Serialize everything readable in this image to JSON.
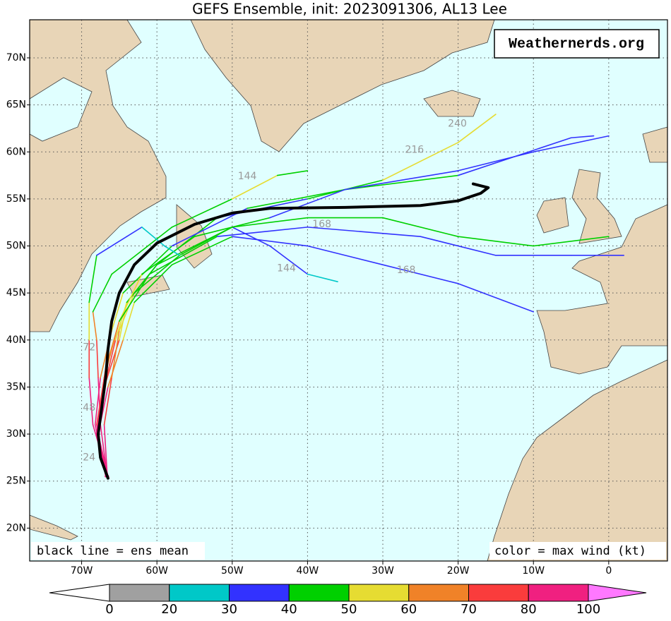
{
  "chart_data": {
    "type": "map",
    "title": "GEFS Ensemble, init: 2023091306, AL13 Lee",
    "xlim": [
      -76.9,
      7.8
    ],
    "ylim": [
      16.5,
      74.05
    ],
    "xticks": [
      {
        "value": -70,
        "label": "70W"
      },
      {
        "value": -60,
        "label": "60W"
      },
      {
        "value": -50,
        "label": "50W"
      },
      {
        "value": -40,
        "label": "40W"
      },
      {
        "value": -30,
        "label": "30W"
      },
      {
        "value": -20,
        "label": "20W"
      },
      {
        "value": -10,
        "label": "10W"
      },
      0
    ],
    "yticks": [
      {
        "value": 20,
        "label": "20N"
      },
      {
        "value": 25,
        "label": "25N"
      },
      {
        "value": 30,
        "label": "30N"
      },
      {
        "value": 35,
        "label": "35N"
      },
      {
        "value": 40,
        "label": "40N"
      },
      {
        "value": 45,
        "label": "45N"
      },
      {
        "value": 50,
        "label": "50N"
      },
      {
        "value": 55,
        "label": "55N"
      },
      {
        "value": 60,
        "label": "60N"
      },
      {
        "value": 65,
        "label": "65N"
      },
      {
        "value": 70,
        "label": "70N"
      }
    ],
    "grid": true,
    "annotations": {
      "logo": "Weathernerds.org",
      "mean_note": "black line = ens mean",
      "color_note": "color = max wind (kt)"
    },
    "mean_track": {
      "color": "#000000",
      "lon": [
        -66.5,
        -67.5,
        -67.8,
        -67.3,
        -66.8,
        -66.5,
        -66,
        -65,
        -63,
        -60,
        -55,
        -50,
        -45,
        -35,
        -25,
        -20,
        -17,
        -16,
        -18
      ],
      "lat": [
        25.3,
        27.5,
        30,
        33,
        36,
        39,
        42,
        45,
        48,
        50.3,
        52.3,
        53.5,
        54,
        54.1,
        54.3,
        54.8,
        55.6,
        56.2,
        56.6
      ]
    },
    "members": [
      {
        "lon": [
          -66.5,
          -68,
          -67,
          -65,
          -64,
          -60,
          -52,
          -40,
          -30,
          -20,
          -15
        ],
        "lat": [
          25.5,
          30,
          35,
          40,
          44,
          48,
          53,
          55,
          57,
          61,
          64
        ],
        "wind": [
          90,
          95,
          85,
          70,
          55,
          45,
          40,
          38,
          45,
          50,
          55
        ]
      },
      {
        "lon": [
          -66.8,
          -68.2,
          -67.5,
          -66,
          -64.5,
          -58,
          -48,
          -35,
          -20,
          -5,
          -2
        ],
        "lat": [
          25.5,
          31,
          36,
          41,
          45,
          50,
          54,
          56,
          57.5,
          61.5,
          61.7
        ],
        "wind": [
          85,
          90,
          80,
          65,
          50,
          42,
          38,
          40,
          42,
          38,
          35
        ]
      },
      {
        "lon": [
          -66.5,
          -67.8,
          -66.5,
          -64.5,
          -63,
          -58,
          -50,
          -40,
          -30,
          -20,
          -10
        ],
        "lat": [
          25.5,
          30,
          35,
          40,
          44,
          48,
          51,
          50,
          48,
          46,
          43
        ],
        "wind": [
          88,
          92,
          80,
          68,
          55,
          45,
          40,
          38,
          36,
          34,
          32
        ]
      },
      {
        "lon": [
          -66.6,
          -67,
          -66,
          -65,
          -63,
          -57,
          -50,
          -45,
          -40,
          -36
        ],
        "lat": [
          25.6,
          31,
          36,
          41,
          45,
          49,
          52,
          50,
          47,
          46.2
        ],
        "wind": [
          85,
          88,
          75,
          62,
          50,
          45,
          40,
          35,
          32,
          28
        ]
      },
      {
        "lon": [
          -66.5,
          -68,
          -67,
          -65.5,
          -64,
          -60,
          -50,
          -40,
          -30,
          -20,
          -10,
          0
        ],
        "lat": [
          25.4,
          30,
          35,
          40,
          44,
          48,
          52,
          53,
          53,
          51,
          50,
          51
        ],
        "wind": [
          90,
          92,
          82,
          70,
          58,
          48,
          45,
          45,
          46,
          44,
          42,
          45
        ]
      },
      {
        "lon": [
          -66.6,
          -67.5,
          -67.8,
          -68,
          -68.5,
          -66,
          -58,
          -50,
          -44,
          -40
        ],
        "lat": [
          25.5,
          31,
          36,
          40,
          43,
          47,
          52,
          55,
          57.5,
          58
        ],
        "wind": [
          88,
          90,
          82,
          72,
          60,
          45,
          40,
          45,
          52,
          48
        ]
      },
      {
        "lon": [
          -66.5,
          -68,
          -67,
          -65,
          -62,
          -55,
          -45,
          -35,
          -20,
          -10,
          0
        ],
        "lat": [
          25.5,
          30,
          36,
          42,
          47,
          51,
          53,
          56,
          58,
          60,
          61.7
        ],
        "wind": [
          86,
          90,
          80,
          65,
          50,
          45,
          40,
          38,
          36,
          34,
          33
        ]
      },
      {
        "lon": [
          -66.7,
          -68,
          -66.8,
          -65,
          -61,
          -52,
          -40,
          -25,
          -15,
          -5,
          2
        ],
        "lat": [
          25.5,
          31,
          37,
          42,
          47,
          51,
          52,
          51,
          49,
          49,
          49
        ],
        "wind": [
          87,
          90,
          78,
          62,
          48,
          40,
          38,
          35,
          33,
          32,
          30
        ]
      },
      {
        "lon": [
          -66.5,
          -68.5,
          -69,
          -69,
          -69,
          -68,
          -64,
          -62,
          -59,
          -57
        ],
        "lat": [
          25.5,
          31,
          36,
          40,
          44,
          49,
          51,
          52,
          50,
          49
        ],
        "wind": [
          85,
          88,
          80,
          70,
          55,
          40,
          35,
          30,
          25,
          22
        ]
      }
    ],
    "hour_labels": [
      {
        "text": 24,
        "lon": -69,
        "lat": 27.5
      },
      {
        "text": 48,
        "lon": -69,
        "lat": 32.8
      },
      {
        "text": 72,
        "lon": -69,
        "lat": 39.2
      },
      {
        "text": 144,
        "lon": -48,
        "lat": 57.4
      },
      {
        "text": 144,
        "lon": -42.8,
        "lat": 47.6
      },
      {
        "text": 168,
        "lon": -38.1,
        "lat": 52.3
      },
      {
        "text": 168,
        "lon": -26.9,
        "lat": 47.4
      },
      {
        "text": 216,
        "lon": -25.8,
        "lat": 60.2
      },
      {
        "text": 240,
        "lon": -20.1,
        "lat": 63
      }
    ],
    "colorbar": {
      "bounds": [
        0,
        20,
        30,
        40,
        50,
        60,
        70,
        80,
        100
      ],
      "colors": [
        "#a0a0a0",
        "#00c8c8",
        "#3232ff",
        "#00d000",
        "#e6dc32",
        "#f08228",
        "#fa3c3c",
        "#f02080"
      ],
      "under_color": "#ffffff",
      "over_color": "#ff78ff"
    }
  }
}
